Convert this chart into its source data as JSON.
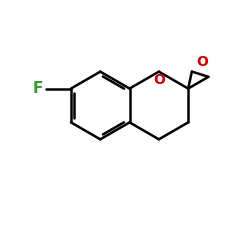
{
  "background_color": "#ffffff",
  "bond_color": "#000000",
  "F_color": "#339933",
  "O_color": "#cc0000",
  "lw": 1.8,
  "lw_inner": 1.6,
  "figsize": [
    2.5,
    2.5
  ],
  "dpi": 100,
  "xlim": [
    -1.0,
    8.5
  ],
  "ylim": [
    -0.5,
    8.0
  ]
}
